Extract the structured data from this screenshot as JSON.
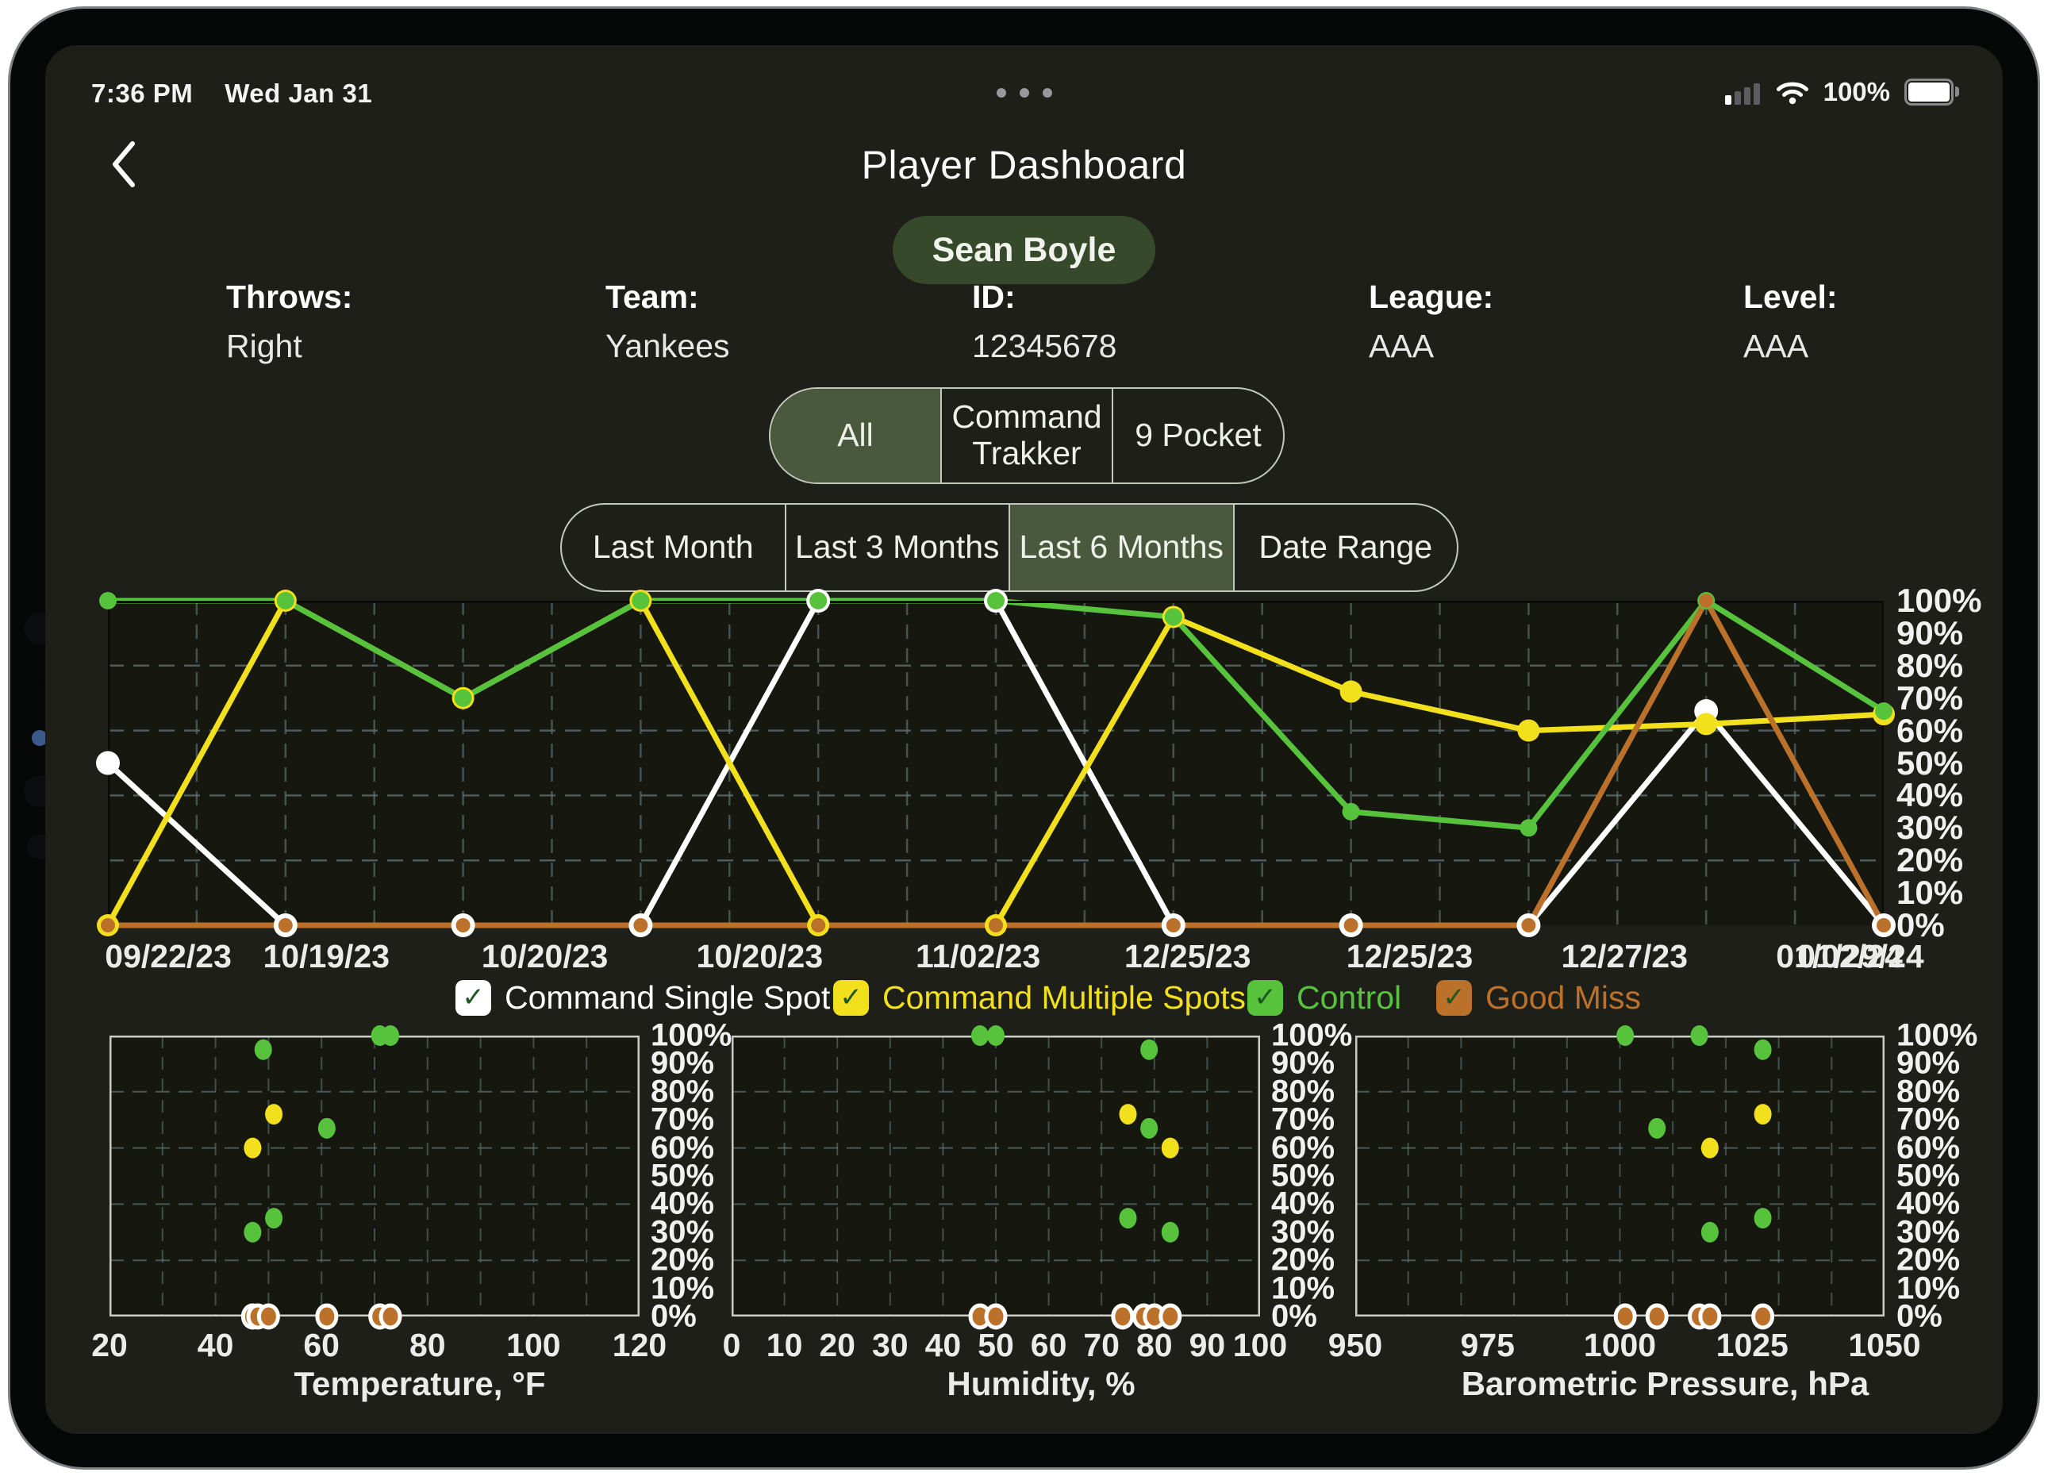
{
  "status_bar": {
    "time": "7:36 PM",
    "date": "Wed Jan 31",
    "battery": "100%",
    "icons": [
      "cellular-signal-icon",
      "wifi-icon",
      "battery-icon"
    ]
  },
  "header": {
    "back_icon": "chevron-left-icon",
    "title": "Player Dashboard",
    "player_name": "Sean Boyle"
  },
  "player_info": {
    "columns": [
      {
        "label": "Throws:",
        "value": "Right"
      },
      {
        "label": "Team:",
        "value": "Yankees"
      },
      {
        "label": "ID:",
        "value": "12345678"
      },
      {
        "label": "League:",
        "value": "AAA"
      },
      {
        "label": "Level:",
        "value": "AAA"
      }
    ]
  },
  "view_tabs": {
    "options": [
      "All",
      "Command Trakker",
      "9 Pocket"
    ],
    "selected": "All"
  },
  "range_tabs": {
    "options": [
      "Last Month",
      "Last 3 Months",
      "Last 6 Months",
      "Date Range"
    ],
    "selected": "Last 6 Months"
  },
  "legend": {
    "check_glyph": "✓",
    "check_color": "#1c5722",
    "items": [
      {
        "label": "Command Single Spot",
        "color": "#ffffff",
        "checked": true
      },
      {
        "label": "Command Multiple Spots",
        "color": "#f2e01d",
        "checked": true
      },
      {
        "label": "Control",
        "color": "#57c23c",
        "checked": true
      },
      {
        "label": "Good Miss",
        "color": "#bc712b",
        "checked": true
      }
    ]
  },
  "colors": {
    "screen_bg": "#1d1f18",
    "plot_bg": "#16180f",
    "grid": "#5f7277",
    "plot_border_dark": "#0a0b08",
    "scatter_border": "#c9cdc4",
    "selected_tab_bg": "#4a593d",
    "player_pill_bg": "#36492a",
    "series_white": "#ffffff",
    "series_yellow": "#f2e01d",
    "series_green": "#57c23c",
    "series_orange": "#bc712b"
  },
  "chart_data": [
    {
      "id": "performance-timeline",
      "type": "line",
      "title": "",
      "num_points": 11,
      "ylim": [
        0,
        100
      ],
      "y_tick_labels": [
        "100%",
        "90%",
        "80%",
        "70%",
        "60%",
        "50%",
        "40%",
        "30%",
        "20%",
        "10%",
        "0%"
      ],
      "x_tick_labels": [
        "09/22/23",
        "10/19/23",
        "10/20/23",
        "10/20/23",
        "11/02/23",
        "12/25/23",
        "12/25/23",
        "12/27/23",
        "01/02/24",
        "01/29/24"
      ],
      "x_tick_positions_pct": [
        3.4,
        12.3,
        24.6,
        36.7,
        49.0,
        60.8,
        73.3,
        85.4,
        97.5,
        98.7
      ],
      "grid": {
        "h_step_pct": 20,
        "v_divisions": 20,
        "style": "dashed"
      },
      "legend_position": "bottom",
      "series": [
        {
          "name": "Command Single Spot",
          "color": "#ffffff",
          "values": [
            50,
            0,
            0,
            0,
            100,
            100,
            0,
            0,
            0,
            66,
            0
          ]
        },
        {
          "name": "Command Multiple Spots",
          "color": "#f2e01d",
          "values": [
            0,
            100,
            70,
            100,
            0,
            0,
            95,
            72,
            60,
            62,
            65
          ]
        },
        {
          "name": "Control",
          "color": "#57c23c",
          "values": [
            100,
            100,
            70,
            100,
            100,
            100,
            95,
            35,
            30,
            100,
            66
          ]
        },
        {
          "name": "Good Miss",
          "color": "#bc712b",
          "values": [
            0,
            0,
            0,
            0,
            0,
            0,
            0,
            0,
            0,
            100,
            0
          ]
        }
      ]
    },
    {
      "id": "temperature-scatter",
      "type": "scatter",
      "xlabel": "Temperature, °F",
      "xlim": [
        20,
        120
      ],
      "x_ticks": [
        20,
        40,
        60,
        80,
        100,
        120
      ],
      "grid_x_step": 10,
      "ylim": [
        0,
        100
      ],
      "y_tick_labels": [
        "100%",
        "90%",
        "80%",
        "70%",
        "60%",
        "50%",
        "40%",
        "30%",
        "20%",
        "10%",
        "0%"
      ],
      "series": [
        {
          "name": "Control",
          "color": "#57c23c",
          "points": [
            [
              49,
              95
            ],
            [
              61,
              67
            ],
            [
              51,
              35
            ],
            [
              47,
              30
            ],
            [
              71,
              100
            ],
            [
              73,
              100
            ]
          ]
        },
        {
          "name": "Command Multiple Spots",
          "color": "#f2e01d",
          "points": [
            [
              51,
              72
            ],
            [
              47,
              60
            ]
          ]
        },
        {
          "name": "Good Miss",
          "color": "#bc712b",
          "outline": "#ffffff",
          "points": [
            [
              47,
              0
            ],
            [
              48,
              0
            ],
            [
              50,
              0
            ],
            [
              61,
              0
            ],
            [
              71,
              0
            ],
            [
              73,
              0
            ]
          ]
        }
      ]
    },
    {
      "id": "humidity-scatter",
      "type": "scatter",
      "xlabel": "Humidity, %",
      "xlim": [
        0,
        100
      ],
      "x_ticks": [
        0,
        10,
        20,
        30,
        40,
        50,
        60,
        70,
        80,
        90,
        100
      ],
      "grid_x_step": 10,
      "ylim": [
        0,
        100
      ],
      "y_tick_labels": [
        "100%",
        "90%",
        "80%",
        "70%",
        "60%",
        "50%",
        "40%",
        "30%",
        "20%",
        "10%",
        "0%"
      ],
      "series": [
        {
          "name": "Control",
          "color": "#57c23c",
          "points": [
            [
              47,
              100
            ],
            [
              50,
              100
            ],
            [
              79,
              95
            ],
            [
              79,
              67
            ],
            [
              75,
              35
            ],
            [
              83,
              30
            ]
          ]
        },
        {
          "name": "Command Multiple Spots",
          "color": "#f2e01d",
          "points": [
            [
              75,
              72
            ],
            [
              83,
              60
            ]
          ]
        },
        {
          "name": "Good Miss",
          "color": "#bc712b",
          "outline": "#ffffff",
          "points": [
            [
              47,
              0
            ],
            [
              50,
              0
            ],
            [
              74,
              0
            ],
            [
              78,
              0
            ],
            [
              80,
              0
            ],
            [
              83,
              0
            ]
          ]
        }
      ]
    },
    {
      "id": "pressure-scatter",
      "type": "scatter",
      "xlabel": "Barometric Pressure, hPa",
      "xlim": [
        950,
        1050
      ],
      "x_ticks": [
        950,
        975,
        1000,
        1025,
        1050
      ],
      "grid_x_step": 10,
      "ylim": [
        0,
        100
      ],
      "y_tick_labels": [
        "100%",
        "90%",
        "80%",
        "70%",
        "60%",
        "50%",
        "40%",
        "30%",
        "20%",
        "10%",
        "0%"
      ],
      "series": [
        {
          "name": "Control",
          "color": "#57c23c",
          "points": [
            [
              1001,
              100
            ],
            [
              1015,
              100
            ],
            [
              1027,
              95
            ],
            [
              1007,
              67
            ],
            [
              1027,
              35
            ],
            [
              1017,
              30
            ]
          ]
        },
        {
          "name": "Command Multiple Spots",
          "color": "#f2e01d",
          "points": [
            [
              1027,
              72
            ],
            [
              1017,
              60
            ]
          ]
        },
        {
          "name": "Good Miss",
          "color": "#bc712b",
          "outline": "#ffffff",
          "points": [
            [
              1001,
              0
            ],
            [
              1007,
              0
            ],
            [
              1015,
              0
            ],
            [
              1017,
              0
            ],
            [
              1027,
              0
            ]
          ]
        }
      ]
    }
  ]
}
